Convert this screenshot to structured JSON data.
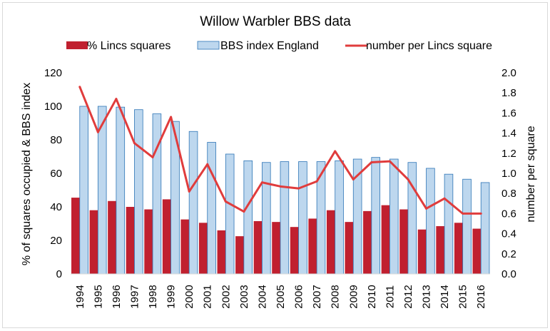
{
  "chart_data": {
    "type": "bar",
    "title": "Willow Warbler BBS data",
    "ylabel": "% of squares occupied & BBS index",
    "y2label": "number per square",
    "ylim": [
      0,
      120
    ],
    "y2lim": [
      0,
      2.0
    ],
    "yticks": [
      "0",
      "20",
      "40",
      "60",
      "80",
      "100",
      "120"
    ],
    "y2ticks": [
      "0.0",
      "0.2",
      "0.4",
      "0.6",
      "0.8",
      "1.0",
      "1.2",
      "1.4",
      "1.6",
      "1.8",
      "2.0"
    ],
    "legend_position": "top",
    "grid": false,
    "colors": {
      "lincs": "#c0202f",
      "bbs_fill": "#bdd7ee",
      "bbs_edge": "#2e75b6",
      "line": "#e03c3c"
    },
    "categories": [
      "1994",
      "1995",
      "1996",
      "1997",
      "1998",
      "1999",
      "2000",
      "2001",
      "2002",
      "2003",
      "2004",
      "2005",
      "2006",
      "2007",
      "2008",
      "2009",
      "2010",
      "2011",
      "2012",
      "2013",
      "2014",
      "2015",
      "2016"
    ],
    "series": [
      {
        "name": "% Lincs squares",
        "type": "bar",
        "axis": "left",
        "values": [
          45.5,
          38,
          43.5,
          40,
          38.5,
          44.5,
          32.5,
          30.5,
          26,
          22.5,
          31.5,
          31,
          28,
          33,
          38,
          31,
          37.5,
          41,
          38.5,
          26.5,
          28.5,
          30.5,
          27
        ]
      },
      {
        "name": "BBS index England",
        "type": "bar",
        "axis": "left",
        "values": [
          100,
          100,
          99.5,
          98,
          95.5,
          91,
          85,
          78.5,
          71.5,
          67.5,
          66.5,
          67,
          67,
          67,
          67.5,
          68.5,
          69.5,
          68.5,
          66.5,
          63,
          59.5,
          56.5,
          54.5
        ]
      },
      {
        "name": "number per Lincs square",
        "type": "line",
        "axis": "right",
        "values": [
          1.86,
          1.41,
          1.74,
          1.3,
          1.16,
          1.56,
          0.82,
          1.09,
          0.72,
          0.62,
          0.91,
          0.87,
          0.85,
          0.92,
          1.22,
          0.94,
          1.11,
          1.12,
          0.94,
          0.65,
          0.75,
          0.6,
          0.6
        ]
      }
    ]
  }
}
